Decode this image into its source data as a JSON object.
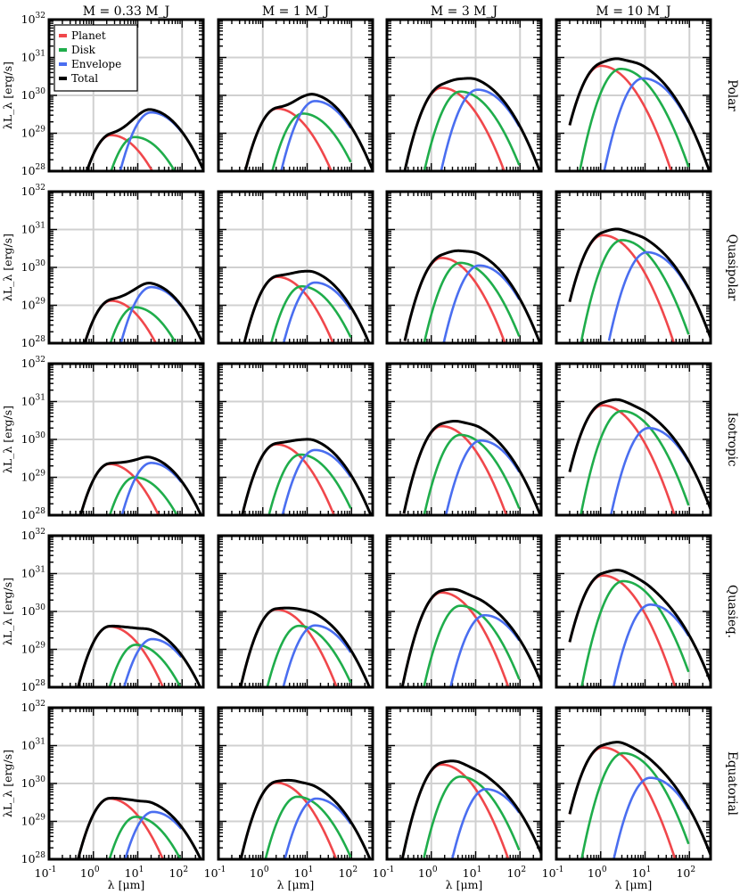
{
  "chart_data": {
    "type": "line",
    "title": "",
    "xlabel": "λ [μm]",
    "ylabel": "λL_λ [erg/s]",
    "xscale": "log",
    "yscale": "log",
    "xlim": [
      0.1,
      300
    ],
    "ylim": [
      1e+28,
      1e+32
    ],
    "grid": true,
    "legend_placement": "top-left (first panel)",
    "x_tick_labels": [
      "10^-1",
      "10^0",
      "10^1",
      "10^2"
    ],
    "y_tick_labels": [
      "10^28",
      "10^29",
      "10^30",
      "10^31",
      "10^32"
    ],
    "columns": [
      "M = 0.33 M_J",
      "M = 1 M_J",
      "M = 3 M_J",
      "M = 10 M_J"
    ],
    "rows": [
      "Polar",
      "Quasipolar",
      "Isotropic",
      "Quasieq.",
      "Equatorial"
    ],
    "series_names": [
      "Planet",
      "Disk",
      "Envelope",
      "Total"
    ],
    "colors": {
      "Planet": "#f0474b",
      "Disk": "#1fad4b",
      "Envelope": "#4a6ef0",
      "Total": "#000000"
    },
    "components_note": "per panel: peak λ [μm], peak log10(λL_λ); Total = sum of components",
    "panels": [
      [
        {
          "Planet": [
            2.5,
            28.95
          ],
          "Disk": [
            8.5,
            28.9
          ],
          "Envelope": [
            20,
            29.55
          ]
        },
        {
          "Planet": [
            2.1,
            29.65
          ],
          "Disk": [
            8.0,
            29.52
          ],
          "Envelope": [
            15,
            29.85
          ]
        },
        {
          "Planet": [
            1.7,
            30.2
          ],
          "Disk": [
            4.5,
            30.1
          ],
          "Envelope": [
            11,
            30.15
          ]
        },
        {
          "Planet": [
            1.0,
            30.78
          ],
          "Disk": [
            2.8,
            30.7
          ],
          "Envelope": [
            9,
            30.45
          ]
        }
      ],
      [
        {
          "Planet": [
            2.5,
            29.12
          ],
          "Disk": [
            8.5,
            28.95
          ],
          "Envelope": [
            20,
            29.48
          ]
        },
        {
          "Planet": [
            2.1,
            29.75
          ],
          "Disk": [
            7.5,
            29.5
          ],
          "Envelope": [
            15,
            29.6
          ]
        },
        {
          "Planet": [
            1.7,
            30.25
          ],
          "Disk": [
            4.5,
            30.12
          ],
          "Envelope": [
            12,
            30.05
          ]
        },
        {
          "Planet": [
            1.1,
            30.85
          ],
          "Disk": [
            3.0,
            30.72
          ],
          "Envelope": [
            11,
            30.4
          ]
        }
      ],
      [
        {
          "Planet": [
            2.3,
            29.35
          ],
          "Disk": [
            8.5,
            29.0
          ],
          "Envelope": [
            20,
            29.38
          ]
        },
        {
          "Planet": [
            2.0,
            29.87
          ],
          "Disk": [
            7.0,
            29.6
          ],
          "Envelope": [
            15,
            29.72
          ]
        },
        {
          "Planet": [
            1.7,
            30.35
          ],
          "Disk": [
            4.5,
            30.12
          ],
          "Envelope": [
            13,
            29.97
          ]
        },
        {
          "Planet": [
            1.1,
            30.9
          ],
          "Disk": [
            3.0,
            30.75
          ],
          "Envelope": [
            12,
            30.3
          ]
        }
      ],
      [
        {
          "Planet": [
            2.3,
            29.6
          ],
          "Disk": [
            9.0,
            29.12
          ],
          "Envelope": [
            21,
            29.27
          ]
        },
        {
          "Planet": [
            2.0,
            30.05
          ],
          "Disk": [
            6.5,
            29.62
          ],
          "Envelope": [
            15,
            29.63
          ]
        },
        {
          "Planet": [
            1.7,
            30.5
          ],
          "Disk": [
            4.5,
            30.15
          ],
          "Envelope": [
            16,
            29.9
          ]
        },
        {
          "Planet": [
            1.1,
            30.95
          ],
          "Disk": [
            3.2,
            30.8
          ],
          "Envelope": [
            13,
            30.18
          ]
        }
      ],
      [
        {
          "Planet": [
            2.3,
            29.6
          ],
          "Disk": [
            9.0,
            29.12
          ],
          "Envelope": [
            22,
            29.25
          ]
        },
        {
          "Planet": [
            2.0,
            30.02
          ],
          "Disk": [
            6.0,
            29.65
          ],
          "Envelope": [
            16,
            29.6
          ]
        },
        {
          "Planet": [
            1.7,
            30.5
          ],
          "Disk": [
            4.5,
            30.18
          ],
          "Envelope": [
            17,
            29.85
          ]
        },
        {
          "Planet": [
            1.1,
            30.95
          ],
          "Disk": [
            3.2,
            30.8
          ],
          "Envelope": [
            13,
            30.15
          ]
        }
      ]
    ]
  }
}
